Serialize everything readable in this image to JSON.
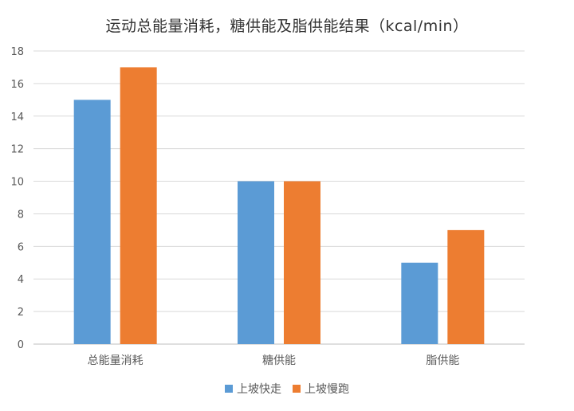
{
  "chart_data": {
    "type": "bar",
    "title": "运动总能量消耗，糖供能及脂供能结果（kcal/min）",
    "xlabel": "",
    "ylabel": "",
    "categories": [
      "总能量消耗",
      "糖供能",
      "脂供能"
    ],
    "series": [
      {
        "name": "上坡快走",
        "values": [
          15,
          10,
          5
        ],
        "color": "#5B9BD5"
      },
      {
        "name": "上坡慢跑",
        "values": [
          17,
          10,
          7
        ],
        "color": "#ED7D31"
      }
    ],
    "ylim": [
      0,
      18
    ],
    "yticks": [
      0,
      2,
      4,
      6,
      8,
      10,
      12,
      14,
      16,
      18
    ],
    "grid": true,
    "legend": "bottom",
    "gridColor": "#D9D9D9",
    "axisColor": "#BFBFBF",
    "labelColor": "#595959"
  }
}
